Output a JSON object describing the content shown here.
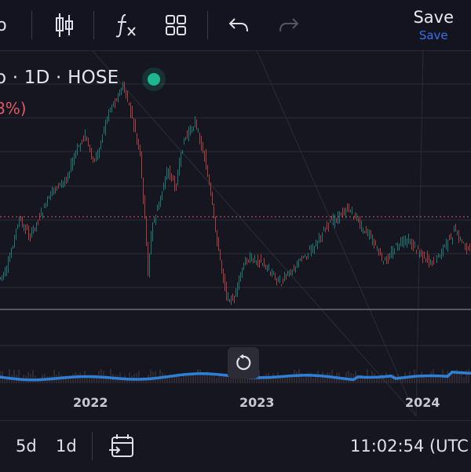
{
  "toolbar": {
    "partial_glyph": "o",
    "candle_icon": "candles-icon",
    "indicator_icon": "fx-icon",
    "layout_icon": "grid-icon",
    "undo_icon": "undo-icon",
    "redo_icon": "redo-icon",
    "save_label": "Save",
    "save_sub_label": "Save"
  },
  "legend": {
    "symbol_text": "o · 1D · HOSE",
    "change_text": "8%)",
    "status_icon": "live-dot"
  },
  "chart_data": {
    "type": "candlestick-with-volume",
    "x_ticks": [
      "2022",
      "2023",
      "2024"
    ],
    "price_line_style": "dotted",
    "volume_line_color": "#2f7fd6",
    "up_color": "#26a69a",
    "down_color": "#ef5350",
    "grid": true
  },
  "colors": {
    "background": "#161620",
    "accent_blue": "#3c6fe6",
    "live_green": "#1fb590",
    "price_line": "#e05a66"
  },
  "bottom_bar": {
    "range_5d": "5d",
    "range_1d": "1d",
    "date_range_icon": "calendar-goto-icon",
    "clock": "11:02:54 (UTC"
  },
  "reset_icon": "reset-icon"
}
